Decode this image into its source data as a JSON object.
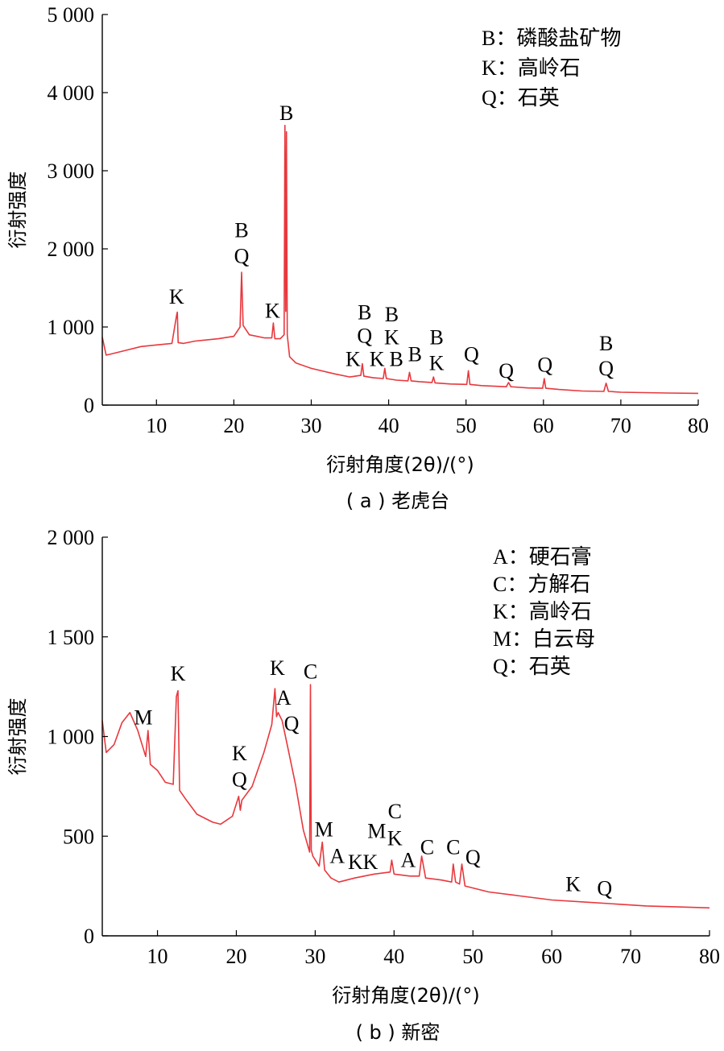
{
  "colors": {
    "series": "#e8383d",
    "axis": "#000000"
  },
  "chart_data": [
    {
      "type": "line",
      "caption": "( a ) 老虎台",
      "xlabel": "衍射角度(2θ)/(°)",
      "ylabel": "衍射强度",
      "xlim": [
        3,
        80
      ],
      "ylim": [
        0,
        5000
      ],
      "x_ticks": [
        10,
        20,
        30,
        40,
        50,
        60,
        70,
        80
      ],
      "y_ticks": [
        0,
        1000,
        2000,
        3000,
        4000,
        5000
      ],
      "y_tick_labels": [
        "0",
        "1 000",
        "2 000",
        "3 000",
        "4 000",
        "5 000"
      ],
      "legend": [
        "B：磷酸盐矿物",
        "K：高岭石",
        "Q：石英"
      ],
      "legend_position": "top-right",
      "grid": false,
      "series": [
        {
          "x": [
            3,
            3.5,
            4,
            6,
            8,
            10,
            12,
            12.6,
            12.7,
            12.8,
            13.5,
            15,
            18,
            20,
            20.8,
            21.0,
            21.2,
            22,
            24,
            24.9,
            25.1,
            25.3,
            26.0,
            26.5,
            26.6,
            26.7,
            26.8,
            26.9,
            27.2,
            28,
            30,
            33,
            35,
            36.4,
            36.6,
            36.8,
            38,
            39.3,
            39.5,
            39.7,
            41,
            42.5,
            42.7,
            42.9,
            44,
            45.6,
            45.8,
            46.0,
            48,
            50.1,
            50.3,
            50.5,
            52,
            55.2,
            55.5,
            55.8,
            58,
            59.9,
            60.1,
            60.3,
            62,
            65,
            67.8,
            68.1,
            68.4,
            70,
            73,
            76,
            80
          ],
          "y": [
            870,
            640,
            650,
            700,
            750,
            770,
            790,
            1150,
            1190,
            800,
            790,
            820,
            850,
            880,
            1000,
            1700,
            1020,
            900,
            860,
            860,
            1050,
            850,
            850,
            900,
            3580,
            1200,
            3500,
            900,
            620,
            540,
            470,
            400,
            360,
            380,
            530,
            370,
            350,
            340,
            470,
            340,
            320,
            310,
            420,
            310,
            300,
            290,
            360,
            285,
            270,
            265,
            440,
            265,
            250,
            235,
            290,
            235,
            220,
            215,
            340,
            215,
            200,
            180,
            175,
            280,
            175,
            165,
            160,
            155,
            150
          ]
        }
      ],
      "peak_labels": [
        {
          "x": 12.6,
          "y": 1300,
          "text": "K"
        },
        {
          "x": 21.0,
          "y": 2150,
          "text": "B"
        },
        {
          "x": 21.0,
          "y": 1820,
          "text": "Q"
        },
        {
          "x": 25.0,
          "y": 1120,
          "text": "K"
        },
        {
          "x": 26.8,
          "y": 3650,
          "text": "B"
        },
        {
          "x": 36.9,
          "y": 1100,
          "text": "B"
        },
        {
          "x": 36.9,
          "y": 800,
          "text": "Q"
        },
        {
          "x": 35.4,
          "y": 500,
          "text": "K"
        },
        {
          "x": 38.5,
          "y": 500,
          "text": "K"
        },
        {
          "x": 40.4,
          "y": 1070,
          "text": "B"
        },
        {
          "x": 40.4,
          "y": 780,
          "text": "K"
        },
        {
          "x": 41.0,
          "y": 500,
          "text": "B"
        },
        {
          "x": 43.4,
          "y": 560,
          "text": "B"
        },
        {
          "x": 46.2,
          "y": 780,
          "text": "B"
        },
        {
          "x": 46.2,
          "y": 450,
          "text": "K"
        },
        {
          "x": 50.7,
          "y": 560,
          "text": "Q"
        },
        {
          "x": 55.2,
          "y": 350,
          "text": "Q"
        },
        {
          "x": 60.2,
          "y": 430,
          "text": "Q"
        },
        {
          "x": 68.1,
          "y": 700,
          "text": "B"
        },
        {
          "x": 68.1,
          "y": 380,
          "text": "Q"
        }
      ]
    },
    {
      "type": "line",
      "caption": "( b ) 新密",
      "xlabel": "衍射角度(2θ)/(°)",
      "ylabel": "衍射强度",
      "xlim": [
        3,
        80
      ],
      "ylim": [
        0,
        2000
      ],
      "x_ticks": [
        10,
        20,
        30,
        40,
        50,
        60,
        70,
        80
      ],
      "y_ticks": [
        0,
        500,
        1000,
        1500,
        2000
      ],
      "y_tick_labels": [
        "0",
        "500",
        "1 000",
        "1 500",
        "2 000"
      ],
      "legend": [
        "A：硬石膏",
        "C：方解石",
        "K：高岭石",
        "M：白云母",
        "Q：石英"
      ],
      "legend_position": "top-right",
      "grid": false,
      "series": [
        {
          "x": [
            3,
            3.5,
            4.5,
            5.5,
            6.5,
            7.5,
            8.5,
            8.8,
            9.1,
            10,
            11,
            12,
            12.4,
            12.6,
            12.8,
            13.5,
            15,
            17,
            18,
            19.5,
            20.3,
            20.5,
            20.7,
            22,
            23.5,
            24.5,
            24.9,
            25.1,
            25.3,
            25.8,
            26.5,
            27.5,
            28.5,
            29.3,
            29.4,
            29.5,
            29.7,
            30.5,
            30.9,
            31.2,
            32,
            33,
            35,
            37.5,
            39.5,
            39.7,
            40,
            42,
            43.2,
            43.5,
            44,
            46,
            47.3,
            47.5,
            47.8,
            48.3,
            48.6,
            49,
            52,
            56,
            60,
            64,
            68,
            72,
            76,
            80
          ],
          "y": [
            1080,
            920,
            960,
            1070,
            1120,
            1030,
            900,
            1030,
            860,
            830,
            770,
            760,
            1200,
            1230,
            730,
            690,
            610,
            570,
            560,
            600,
            700,
            630,
            680,
            750,
            920,
            1060,
            1240,
            1100,
            1120,
            1080,
            950,
            760,
            530,
            420,
            1260,
            430,
            400,
            350,
            470,
            330,
            290,
            270,
            290,
            310,
            320,
            380,
            310,
            300,
            300,
            400,
            290,
            280,
            270,
            360,
            270,
            260,
            360,
            250,
            220,
            200,
            180,
            170,
            160,
            150,
            145,
            140
          ]
        }
      ],
      "peak_labels": [
        {
          "x": 8.2,
          "y": 1060,
          "text": "M"
        },
        {
          "x": 12.6,
          "y": 1280,
          "text": "K"
        },
        {
          "x": 20.4,
          "y": 880,
          "text": "K"
        },
        {
          "x": 20.4,
          "y": 750,
          "text": "Q"
        },
        {
          "x": 25.2,
          "y": 1310,
          "text": "K"
        },
        {
          "x": 26.0,
          "y": 1160,
          "text": "A"
        },
        {
          "x": 27.0,
          "y": 1030,
          "text": "Q"
        },
        {
          "x": 29.4,
          "y": 1290,
          "text": "C"
        },
        {
          "x": 31.1,
          "y": 500,
          "text": "M"
        },
        {
          "x": 32.8,
          "y": 365,
          "text": "A"
        },
        {
          "x": 35.1,
          "y": 335,
          "text": "K"
        },
        {
          "x": 37.0,
          "y": 335,
          "text": "K"
        },
        {
          "x": 37.8,
          "y": 490,
          "text": "M"
        },
        {
          "x": 40.1,
          "y": 590,
          "text": "C"
        },
        {
          "x": 40.1,
          "y": 455,
          "text": "K"
        },
        {
          "x": 41.8,
          "y": 345,
          "text": "A"
        },
        {
          "x": 44.2,
          "y": 410,
          "text": "C"
        },
        {
          "x": 47.5,
          "y": 410,
          "text": "C"
        },
        {
          "x": 50.0,
          "y": 360,
          "text": "Q"
        },
        {
          "x": 62.7,
          "y": 225,
          "text": "K"
        },
        {
          "x": 66.7,
          "y": 205,
          "text": "Q"
        }
      ]
    }
  ]
}
